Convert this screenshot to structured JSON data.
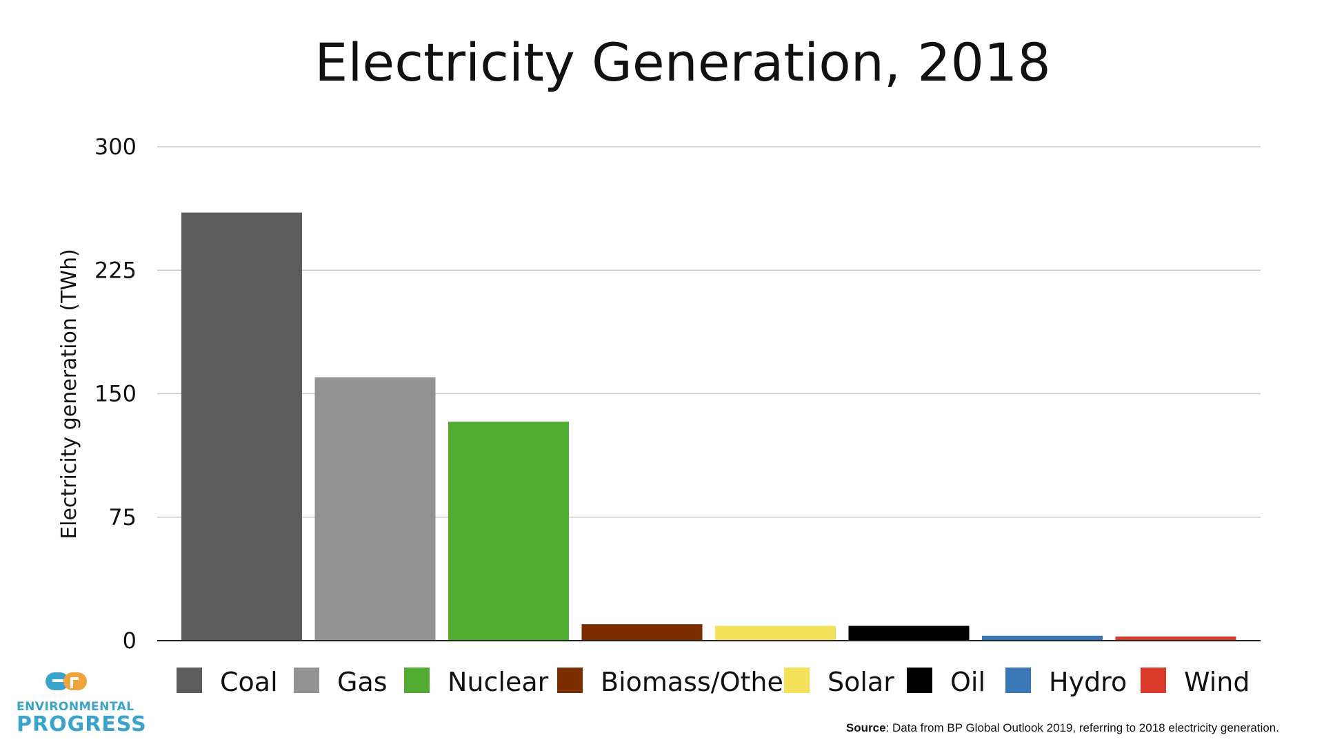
{
  "chart_data": {
    "type": "bar",
    "title": "Electricity Generation, 2018",
    "ylabel": "Electricity generation (TWh)",
    "xlabel": "",
    "ylim": [
      0,
      300
    ],
    "yticks": [
      0,
      75,
      150,
      225,
      300
    ],
    "grid": true,
    "legend_position": "bottom",
    "categories": [
      "Coal",
      "Gas",
      "Nuclear",
      "Biomass/Other",
      "Solar",
      "Oil",
      "Hydro",
      "Wind"
    ],
    "values": [
      260,
      160,
      133,
      10,
      9,
      9,
      3,
      2.5
    ],
    "colors": [
      "#5d5d5d",
      "#939393",
      "#53ac32",
      "#7d2e00",
      "#f5e05a",
      "#000000",
      "#3a77b6",
      "#d93a2a"
    ]
  },
  "source": {
    "label": "Source",
    "text": ": Data from BP Global Outlook 2019, referring to 2018 electricity generation."
  },
  "logo": {
    "line1": "ENVIRONMENTAL",
    "line2": "PROGRESS",
    "colors": {
      "blue": "#3aa3c9",
      "orange": "#f0a33a"
    }
  }
}
